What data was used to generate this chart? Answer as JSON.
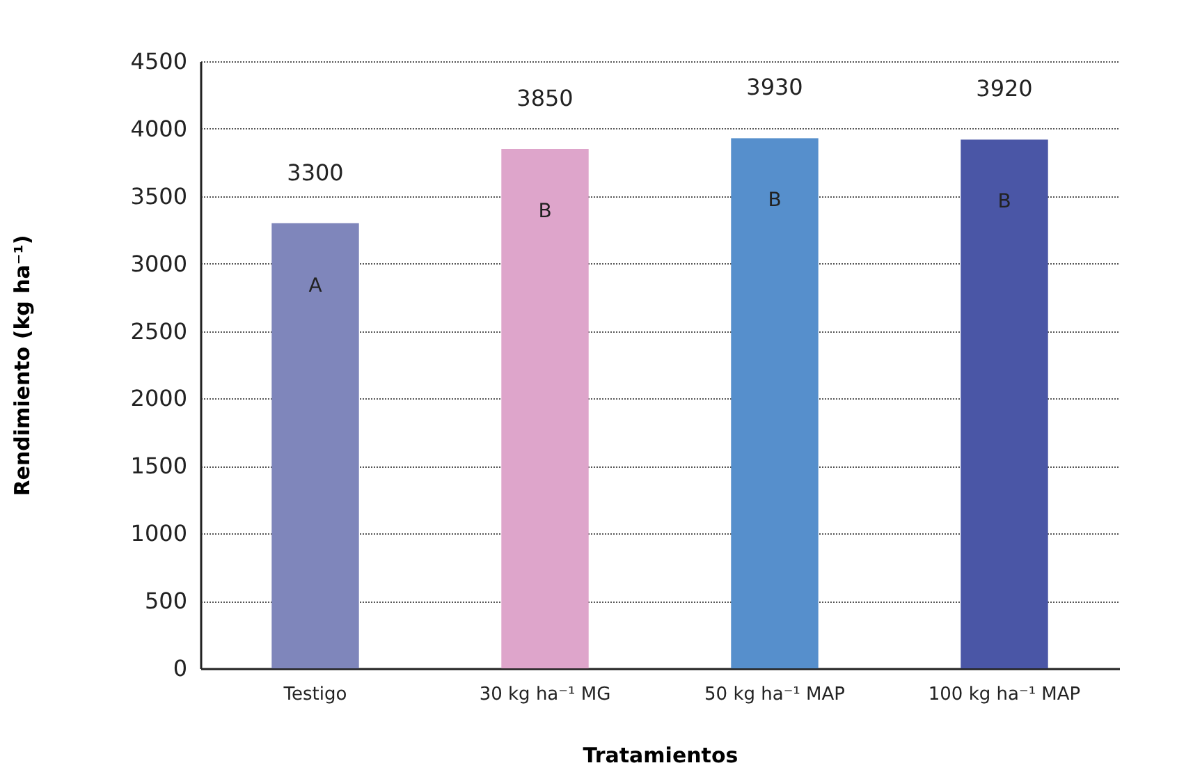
{
  "chart_data": {
    "type": "bar",
    "xlabel": "Tratamientos",
    "ylabel": "Rendimiento (kg ha⁻¹)",
    "categories": [
      "Testigo",
      "30 kg ha⁻¹ MG",
      "50 kg ha⁻¹ MAP",
      "100 kg ha⁻¹ MAP"
    ],
    "values": [
      3300,
      3850,
      3930,
      3920
    ],
    "colors": [
      "#7f86bb",
      "#dea5cb",
      "#568fcc",
      "#4a56a6"
    ],
    "data_labels": true,
    "annotations": [
      "A",
      "B",
      "B",
      "B"
    ],
    "ylim": [
      0,
      4500
    ],
    "yticks": [
      0,
      500,
      1000,
      1500,
      2000,
      2500,
      3000,
      3500,
      4000,
      4500
    ],
    "grid": "y"
  }
}
